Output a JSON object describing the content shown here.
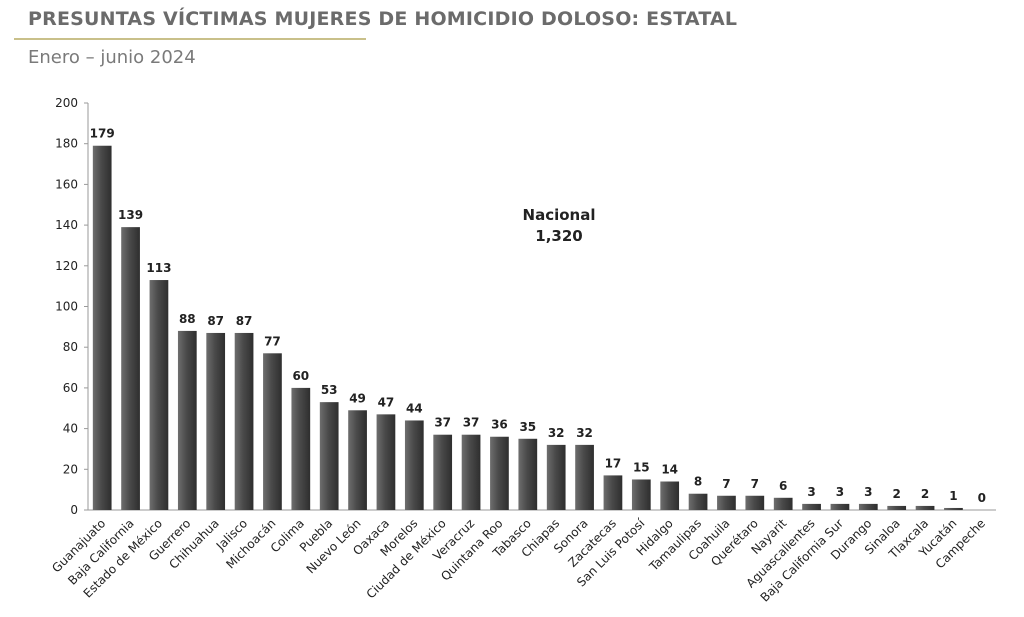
{
  "header": {
    "title": "PRESUNTAS VÍCTIMAS MUJERES DE HOMICIDIO DOLOSO: ESTATAL",
    "subtitle": "Enero – junio 2024"
  },
  "annotation": {
    "label": "Nacional",
    "value": "1,320"
  },
  "chart_data": {
    "type": "bar",
    "categories": [
      "Guanajuato",
      "Baja California",
      "Estado de México",
      "Guerrero",
      "Chihuahua",
      "Jalisco",
      "Michoacán",
      "Colima",
      "Puebla",
      "Nuevo León",
      "Oaxaca",
      "Morelos",
      "Ciudad de México",
      "Veracruz",
      "Quintana Roo",
      "Tabasco",
      "Chiapas",
      "Sonora",
      "Zacatecas",
      "San Luis Potosí",
      "Hidalgo",
      "Tamaulipas",
      "Coahuila",
      "Querétaro",
      "Nayarit",
      "Aguascalientes",
      "Baja California Sur",
      "Durango",
      "Sinaloa",
      "Tlaxcala",
      "Yucatán",
      "Campeche"
    ],
    "values": [
      179,
      139,
      113,
      88,
      87,
      87,
      77,
      60,
      53,
      49,
      47,
      44,
      37,
      37,
      36,
      35,
      32,
      32,
      17,
      15,
      14,
      8,
      7,
      7,
      6,
      3,
      3,
      3,
      2,
      2,
      1,
      0
    ],
    "ylim": [
      0,
      200
    ],
    "yticks": [
      0,
      20,
      40,
      60,
      80,
      100,
      120,
      140,
      160,
      180,
      200
    ],
    "grid": false,
    "bar_color": "#555555"
  }
}
